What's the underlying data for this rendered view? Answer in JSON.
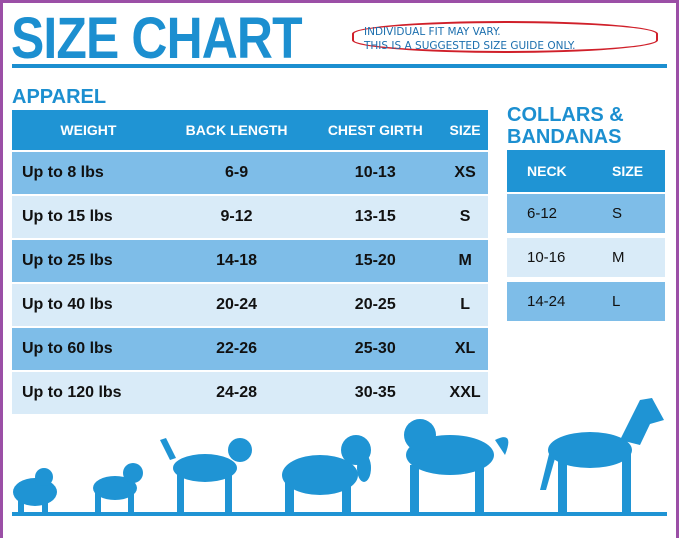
{
  "title": "SIZE CHART",
  "notice": [
    "INDIVIDUAL FIT MAY VARY.",
    "THIS IS A SUGGESTED SIZE GUIDE ONLY."
  ],
  "colors": {
    "brand_blue": "#1c8fd0",
    "row_dark": "#7ebde8",
    "row_light": "#d9ebf8",
    "notice_border": "#d0202a",
    "frame": "#9b4fa6"
  },
  "apparel": {
    "heading": "APPAREL",
    "headers": [
      "WEIGHT",
      "BACK LENGTH",
      "CHEST GIRTH",
      "SIZE"
    ],
    "rows": [
      [
        "Up to 8 lbs",
        "6-9",
        "10-13",
        "XS"
      ],
      [
        "Up to 15 lbs",
        "9-12",
        "13-15",
        "S"
      ],
      [
        "Up to 25 lbs",
        "14-18",
        "15-20",
        "M"
      ],
      [
        "Up to 40 lbs",
        "20-24",
        "20-25",
        "L"
      ],
      [
        "Up to 60 lbs",
        "22-26",
        "25-30",
        "XL"
      ],
      [
        "Up to 120 lbs",
        "24-28",
        "30-35",
        "XXL"
      ]
    ]
  },
  "collars": {
    "heading_line1": "COLLARS &",
    "heading_line2": "BANDANAS",
    "headers": [
      "NECK",
      "SIZE"
    ],
    "rows": [
      [
        "6-12",
        "S"
      ],
      [
        "10-16",
        "M"
      ],
      [
        "14-24",
        "L"
      ]
    ]
  },
  "illustration": "dog-silhouettes"
}
